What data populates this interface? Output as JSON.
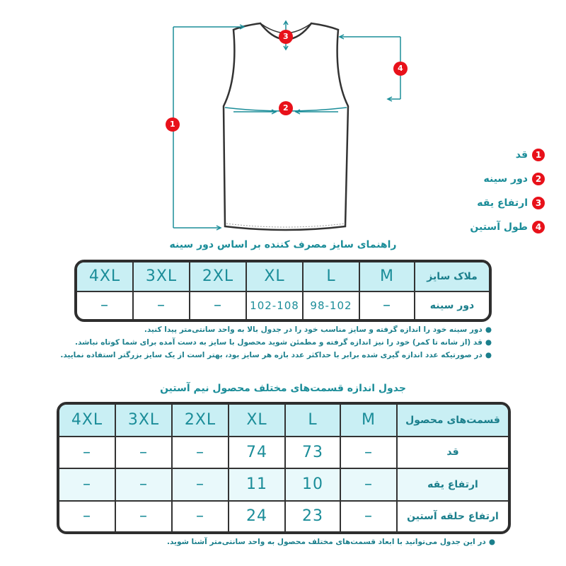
{
  "diagram": {
    "markers": [
      "1",
      "2",
      "3",
      "4"
    ]
  },
  "legend": [
    {
      "num": "1",
      "label": "قد"
    },
    {
      "num": "2",
      "label": "دور سینه"
    },
    {
      "num": "3",
      "label": "ارتفاع یقه"
    },
    {
      "num": "4",
      "label": "طول آستین"
    }
  ],
  "table1": {
    "title": "راهنمای سایز مصرف کننده بر اساس دور سینه",
    "header": [
      "4XL",
      "3XL",
      "2XL",
      "XL",
      "L",
      "M",
      "ملاک سایز"
    ],
    "rows": [
      [
        "–",
        "–",
        "–",
        "102-108",
        "98-102",
        "–",
        "دور سینه"
      ]
    ]
  },
  "notes1": [
    "دور سینه خود را اندازه گرفته و سایز مناسب خود را در جدول بالا به واحد سانتی‌متر پیدا کنید.",
    "قد (از شانه تا کمر) خود را نیز اندازه گرفته و مطمئن شوید محصول با سایز به دست آمده برای شما کوتاه نباشد.",
    "در صورتیکه عدد اندازه گیری شده برابر با حداکثر عدد بازه هر سایز بود، بهتر است از یک سایز بزرگتر استفاده نمایید."
  ],
  "table2": {
    "title": "جدول اندازه قسمت‌های مختلف محصول نیم آستین",
    "header": [
      "4XL",
      "3XL",
      "2XL",
      "XL",
      "L",
      "M",
      "قسمت‌های محصول"
    ],
    "rows": [
      [
        "–",
        "–",
        "–",
        "74",
        "73",
        "–",
        "قد"
      ],
      [
        "–",
        "–",
        "–",
        "11",
        "10",
        "–",
        "ارتفاع یقه"
      ],
      [
        "–",
        "–",
        "–",
        "24",
        "23",
        "–",
        "ارتفاع حلقه آستین"
      ]
    ]
  },
  "notes2": [
    "در این جدول می‌توانید با ابعاد قسمت‌های مختلف محصول به واحد سانتی‌متر آشنا شوید."
  ],
  "colors": {
    "accent": "#1b8d99",
    "marker": "#e8111a",
    "header_bg": "#c9eff4",
    "border": "#2e2e2e"
  }
}
